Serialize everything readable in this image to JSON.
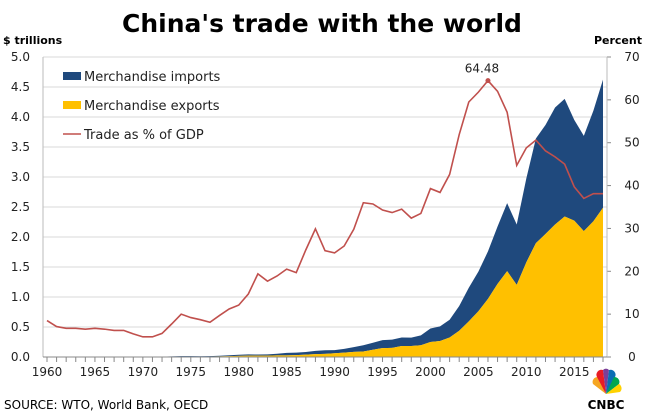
{
  "chart_data": {
    "type": "area+line",
    "title": "China's trade with the world",
    "ylabel_left": "$ trillions",
    "ylabel_right": "Percent",
    "source": "SOURCE: WTO, World Bank, OECD",
    "logo": "CNBC",
    "ylim_left": [
      0,
      5.0
    ],
    "ylim_right": [
      0,
      70
    ],
    "xlim": [
      1960,
      2018
    ],
    "yticks_left": [
      "0.0",
      "0.5",
      "1.0",
      "1.5",
      "2.0",
      "2.5",
      "3.0",
      "3.5",
      "4.0",
      "4.5",
      "5.0"
    ],
    "yticks_right": [
      "0",
      "10",
      "20",
      "30",
      "40",
      "50",
      "60",
      "70"
    ],
    "xticks": [
      "1960",
      "1965",
      "1970",
      "1975",
      "1980",
      "1985",
      "1990",
      "1995",
      "2000",
      "2005",
      "2010",
      "2015"
    ],
    "grid": true,
    "legend_placement": "top-left",
    "x": [
      1960,
      1961,
      1962,
      1963,
      1964,
      1965,
      1966,
      1967,
      1968,
      1969,
      1970,
      1971,
      1972,
      1973,
      1974,
      1975,
      1976,
      1977,
      1978,
      1979,
      1980,
      1981,
      1982,
      1983,
      1984,
      1985,
      1986,
      1987,
      1988,
      1989,
      1990,
      1991,
      1992,
      1993,
      1994,
      1995,
      1996,
      1997,
      1998,
      1999,
      2000,
      2001,
      2002,
      2003,
      2004,
      2005,
      2006,
      2007,
      2008,
      2009,
      2010,
      2011,
      2012,
      2013,
      2014,
      2015,
      2016,
      2017,
      2018
    ],
    "series": [
      {
        "name": "Merchandise exports",
        "kind": "stacked-area",
        "axis": "left",
        "color": "#FFC000",
        "values": [
          0.0026,
          0.0015,
          0.0015,
          0.0016,
          0.0019,
          0.0022,
          0.0024,
          0.0021,
          0.0021,
          0.0022,
          0.0023,
          0.0026,
          0.0034,
          0.0058,
          0.0069,
          0.0073,
          0.0069,
          0.0076,
          0.0098,
          0.0137,
          0.0181,
          0.022,
          0.0223,
          0.0222,
          0.0261,
          0.0274,
          0.0309,
          0.0394,
          0.0475,
          0.0525,
          0.0621,
          0.0719,
          0.0849,
          0.0917,
          0.121,
          0.1488,
          0.1511,
          0.1828,
          0.1837,
          0.1949,
          0.2492,
          0.2661,
          0.3256,
          0.4382,
          0.5934,
          0.762,
          0.969,
          1.218,
          1.431,
          1.202,
          1.578,
          1.898,
          2.049,
          2.209,
          2.342,
          2.273,
          2.098,
          2.263,
          2.487
        ]
      },
      {
        "name": "Merchandise imports",
        "kind": "stacked-area",
        "axis": "left",
        "color": "#1F497D",
        "values": [
          0.002,
          0.0014,
          0.0012,
          0.0013,
          0.0016,
          0.002,
          0.0022,
          0.002,
          0.0019,
          0.0018,
          0.0023,
          0.0022,
          0.0029,
          0.0052,
          0.0076,
          0.0074,
          0.0066,
          0.0072,
          0.0111,
          0.0157,
          0.02,
          0.022,
          0.0193,
          0.0214,
          0.0274,
          0.0423,
          0.0429,
          0.0432,
          0.0553,
          0.0591,
          0.0534,
          0.0638,
          0.0806,
          0.104,
          0.1157,
          0.1321,
          0.1388,
          0.1424,
          0.1402,
          0.1657,
          0.2251,
          0.2436,
          0.2952,
          0.4128,
          0.5612,
          0.66,
          0.7915,
          0.9561,
          1.1326,
          1.0059,
          1.3962,
          1.7435,
          1.8184,
          1.95,
          1.9592,
          1.6796,
          1.5879,
          1.8438,
          2.135
        ]
      },
      {
        "name": "Trade as % of GDP",
        "kind": "line",
        "axis": "right",
        "color": "#C0504D",
        "values": [
          8.5,
          7.1,
          6.7,
          6.7,
          6.5,
          6.7,
          6.5,
          6.2,
          6.2,
          5.4,
          4.7,
          4.7,
          5.5,
          7.7,
          10.0,
          9.2,
          8.7,
          8.1,
          9.7,
          11.2,
          12.1,
          14.7,
          19.4,
          17.7,
          18.9,
          20.5,
          19.7,
          25.0,
          29.9,
          24.8,
          24.3,
          25.9,
          29.8,
          36.0,
          35.7,
          34.3,
          33.7,
          34.5,
          32.4,
          33.5,
          39.3,
          38.4,
          42.6,
          51.9,
          59.5,
          61.8,
          64.48,
          62.0,
          57.1,
          44.7,
          48.8,
          50.6,
          48.1,
          46.7,
          45.0,
          39.7,
          37.0,
          38.1,
          38.1
        ]
      }
    ],
    "annotations": [
      {
        "x": 2006,
        "series": "Trade as % of GDP",
        "text": "64.48"
      }
    ]
  }
}
